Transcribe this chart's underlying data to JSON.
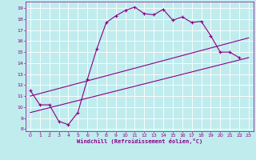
{
  "xlabel": "Windchill (Refroidissement éolien,°C)",
  "bg_color": "#c0ecee",
  "line_color": "#880088",
  "grid_color": "#ffffff",
  "xlim": [
    -0.5,
    23.5
  ],
  "ylim": [
    7.8,
    19.6
  ],
  "yticks": [
    8,
    9,
    10,
    11,
    12,
    13,
    14,
    15,
    16,
    17,
    18,
    19
  ],
  "xticks": [
    0,
    1,
    2,
    3,
    4,
    5,
    6,
    7,
    8,
    9,
    10,
    11,
    12,
    13,
    14,
    15,
    16,
    17,
    18,
    19,
    20,
    21,
    22,
    23
  ],
  "line1_x": [
    0,
    1,
    2,
    3,
    4,
    5,
    6,
    7,
    8,
    9,
    10,
    11,
    12,
    13,
    14,
    15,
    16,
    17,
    18,
    19,
    20,
    21,
    22
  ],
  "line1_y": [
    11.5,
    10.2,
    10.2,
    8.7,
    8.4,
    9.5,
    12.5,
    15.3,
    17.7,
    18.3,
    18.8,
    19.1,
    18.5,
    18.4,
    18.9,
    17.9,
    18.2,
    17.7,
    17.8,
    16.5,
    15.0,
    15.0,
    14.5
  ],
  "line2_x": [
    0,
    23
  ],
  "line2_y": [
    9.5,
    14.5
  ],
  "line3_x": [
    0,
    23
  ],
  "line3_y": [
    11.0,
    16.3
  ]
}
